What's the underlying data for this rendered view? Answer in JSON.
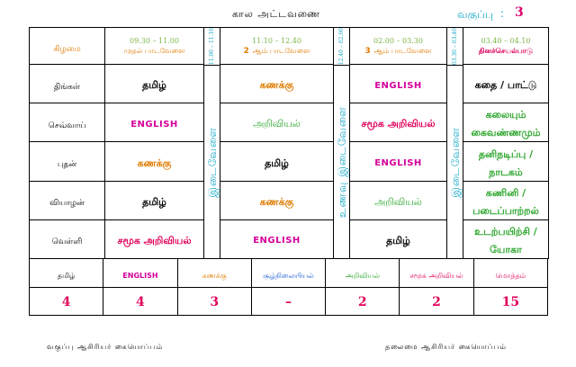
{
  "header": {
    "title": "கால அட்டவணை",
    "class_label": "வகுப்பு",
    "class_colon": ":",
    "class_number": "3"
  },
  "periods": [
    {
      "time": "09.30 – 11.00",
      "num": "",
      "name": "முதல் பாடவேளை"
    },
    {
      "time": "11.10 – 12.40",
      "num": "2",
      "name": "ஆம் பாடவேளை"
    },
    {
      "time": "02.00 – 03.30",
      "num": "3",
      "name": "ஆம் பாடவேளை"
    },
    {
      "time": "03.40 – 04.10",
      "num": "",
      "name": "தினச்செயல்பாடு"
    }
  ],
  "breaks": [
    {
      "time": "11.00 – 11.10",
      "label": "இடைவேளை"
    },
    {
      "time": "12.40 – 02.00",
      "label": "உணவு இடைவேளை"
    },
    {
      "time": "03.30 – 03.40",
      "label": "இடைவேளை"
    }
  ],
  "day_header": "கிழமை",
  "days": [
    {
      "name": "திங்கள்",
      "p1": "தமிழ்",
      "p2": "கணக்கு",
      "p3": "ENGLISH",
      "p4": "கதை / பாட்டு"
    },
    {
      "name": "செவ்வாய்",
      "p1": "ENGLISH",
      "p2": "அறிவியல்",
      "p3": "சமூக அறிவியல்",
      "p4": "கலையும் கைவண்ணமும்"
    },
    {
      "name": "புதன்",
      "p1": "கணக்கு",
      "p2": "தமிழ்",
      "p3": "ENGLISH",
      "p4": "தனிநடிப்பு / நாடகம்"
    },
    {
      "name": "வியாழன்",
      "p1": "தமிழ்",
      "p2": "கணக்கு",
      "p3": "அறிவியல்",
      "p4": "கணினி / படைப்பாற்றல்"
    },
    {
      "name": "வெள்ளி",
      "p1": "சமூக அறிவியல்",
      "p2": "ENGLISH",
      "p3": "தமிழ்",
      "p4": "உடற்பயிற்சி / யோகா"
    }
  ],
  "summary": [
    {
      "label": "தமிழ்",
      "value": "4"
    },
    {
      "label": "ENGLISH",
      "value": "4"
    },
    {
      "label": "கணக்கு",
      "value": "3"
    },
    {
      "label": "சூழ்நிலையியல்",
      "value": "–"
    },
    {
      "label": "அறிவியல்",
      "value": "2"
    },
    {
      "label": "சமூக அறிவியல்",
      "value": "2"
    },
    {
      "label": "மொத்தம்",
      "value": "15"
    }
  ],
  "footer": {
    "left": "வகுப்பு ஆசிரியர் கையொப்பம்",
    "right": "தலைமை ஆசிரியர் கையொப்பம்"
  },
  "colors": {
    "english": "#d4009a",
    "tamil": "#000000",
    "maths": "#e07b00",
    "science": "#2aa52a",
    "social": "#e0005a",
    "break": "#17a9c8"
  }
}
